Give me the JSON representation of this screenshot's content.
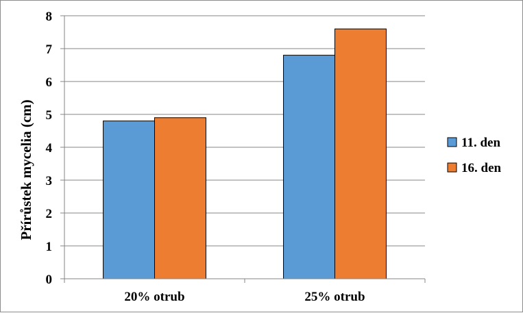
{
  "chart_data": {
    "type": "bar",
    "title": "",
    "xlabel": "",
    "ylabel": "Přírůstek mycelia (cm)",
    "categories": [
      "20% otrub",
      "25% otrub"
    ],
    "series": [
      {
        "name": "11. den",
        "values": [
          4.8,
          6.8
        ],
        "color": "#5b9bd5"
      },
      {
        "name": "16. den",
        "values": [
          4.9,
          7.6
        ],
        "color": "#ed7d31"
      }
    ],
    "ylim": [
      0,
      8
    ],
    "yticks": [
      0,
      1,
      2,
      3,
      4,
      5,
      6,
      7,
      8
    ],
    "grid": true,
    "legend": "right"
  }
}
